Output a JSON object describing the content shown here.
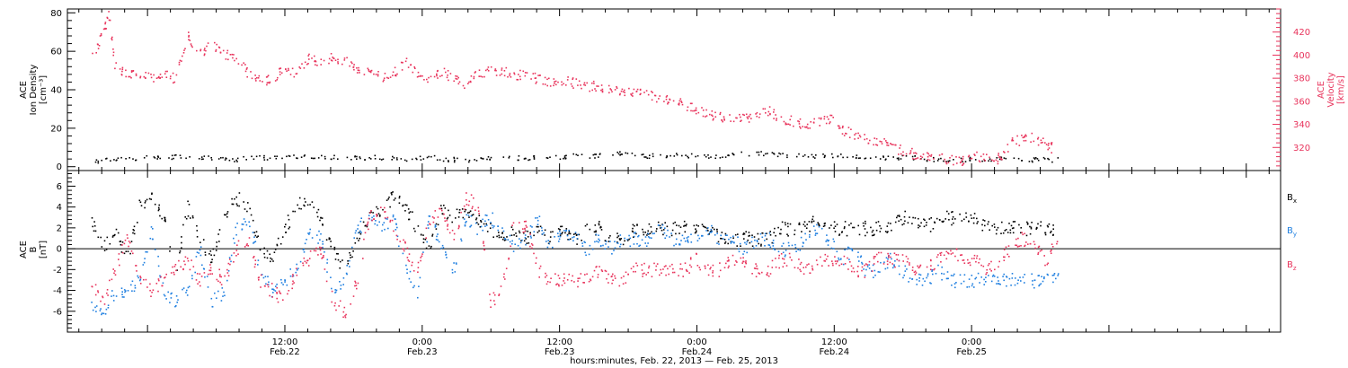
{
  "colors": {
    "black": "#000000",
    "blue": "#1f7fe0",
    "red": "#e8345c"
  },
  "chart_data": [
    {
      "type": "scatter",
      "panel": "top",
      "ylabel_lines": [
        "ACE",
        "Ion Density",
        "[cm⁻³]"
      ],
      "ylim": [
        -2,
        82
      ],
      "yticks": [
        0,
        20,
        40,
        60,
        80
      ],
      "y2label_lines": [
        "ACE",
        "Velocity",
        "[km/s]"
      ],
      "y2lim": [
        300,
        440
      ],
      "y2ticks": [
        320,
        340,
        360,
        380,
        400,
        420
      ],
      "grid": false,
      "series": [
        {
          "axis": "left",
          "color": "#000000",
          "x": [
            0,
            2,
            4,
            6,
            8,
            10,
            12,
            14,
            16,
            18,
            20,
            22,
            24,
            26,
            28,
            30,
            32,
            34,
            36,
            38,
            40,
            42,
            44,
            46,
            48,
            50,
            52,
            54,
            56,
            58,
            60,
            62,
            64,
            66,
            68,
            70,
            72,
            74,
            76,
            78,
            80
          ],
          "y": [
            3,
            4,
            5,
            5,
            6,
            5,
            4,
            5,
            5,
            6,
            5,
            5,
            5,
            4,
            5,
            4,
            4,
            5,
            5,
            5,
            6,
            6,
            7,
            6,
            6,
            6,
            6,
            7,
            7,
            6,
            6,
            6,
            5,
            5,
            5,
            4,
            4,
            4,
            4,
            4,
            4
          ]
        },
        {
          "axis": "right",
          "color": "#e8345c",
          "x": [
            0,
            1,
            1.5,
            2,
            3,
            4,
            5,
            6,
            7,
            8,
            9,
            10,
            11,
            12,
            13,
            14,
            15,
            16,
            17,
            18,
            19,
            20,
            21,
            22,
            23,
            24,
            25,
            26,
            27,
            28,
            29,
            30,
            31,
            32,
            33,
            34,
            35,
            36,
            37,
            38,
            39,
            40,
            41,
            42,
            43,
            44,
            45,
            46,
            47,
            48,
            49,
            50,
            51,
            52,
            53,
            54,
            55,
            56,
            57,
            58,
            59,
            60,
            61,
            62,
            63,
            64,
            65,
            66,
            67,
            68,
            69,
            70,
            71,
            72,
            73,
            74,
            75,
            76,
            77,
            78,
            79,
            79.5
          ],
          "y": [
            395,
            420,
            435,
            390,
            383,
            385,
            380,
            384,
            380,
            418,
            402,
            410,
            402,
            398,
            385,
            380,
            378,
            390,
            385,
            398,
            394,
            398,
            396,
            388,
            388,
            380,
            385,
            395,
            385,
            380,
            386,
            380,
            375,
            385,
            387,
            386,
            384,
            382,
            380,
            378,
            378,
            376,
            374,
            373,
            371,
            370,
            368,
            366,
            364,
            361,
            357,
            353,
            350,
            347,
            345,
            345,
            349,
            352,
            346,
            343,
            341,
            342,
            346,
            336,
            332,
            328,
            327,
            322,
            318,
            315,
            314,
            313,
            310,
            309,
            313,
            311,
            311,
            324,
            328,
            329,
            322,
            320
          ]
        }
      ]
    },
    {
      "type": "scatter",
      "panel": "bottom",
      "ylabel_lines": [
        "ACE",
        "B",
        "[nT]"
      ],
      "ylim": [
        -8,
        7.5
      ],
      "yticks": [
        -6,
        -4,
        -2,
        0,
        2,
        4,
        6
      ],
      "zero_line": true,
      "legend_placement": "right",
      "series": [
        {
          "name": "Bx",
          "name_base": "B",
          "name_sub": "x",
          "color": "#000000",
          "x": [
            0,
            1,
            2,
            3,
            4,
            5,
            6,
            7,
            8,
            9,
            10,
            11,
            12,
            13,
            14,
            15,
            16,
            17,
            18,
            19,
            20,
            21,
            22,
            23,
            24,
            25,
            26,
            27,
            28,
            29,
            30,
            31,
            32,
            33,
            34,
            35,
            36,
            37,
            38,
            39,
            40,
            41,
            42,
            43,
            44,
            45,
            46,
            47,
            48,
            49,
            50,
            51,
            52,
            53,
            54,
            55,
            56,
            57,
            58,
            59,
            60,
            61,
            62,
            63,
            64,
            65,
            66,
            67,
            68,
            69,
            70,
            71,
            72,
            73,
            74,
            75,
            76,
            77,
            78,
            79,
            80
          ],
          "y": [
            3,
            0,
            2,
            -1,
            4,
            5,
            3,
            -2,
            4,
            1,
            -1,
            3,
            5,
            4,
            0,
            -1,
            2,
            4,
            5,
            3,
            0,
            -2,
            1,
            3,
            4,
            5,
            4,
            2,
            0,
            4,
            3,
            4,
            3,
            2,
            1,
            2,
            1,
            2,
            1,
            2,
            1,
            2,
            2,
            1,
            1,
            2,
            2,
            2,
            2,
            2,
            2,
            2,
            1,
            1,
            1,
            1,
            1,
            2,
            2,
            2,
            3,
            2,
            2,
            2,
            2,
            2,
            2,
            3,
            3,
            2,
            3,
            3,
            3,
            3,
            2,
            2,
            2,
            2,
            2,
            2,
            2
          ]
        },
        {
          "name": "By",
          "name_base": "B",
          "name_sub": "y",
          "color": "#1f7fe0",
          "x": [
            0,
            1,
            2,
            3,
            4,
            5,
            6,
            7,
            8,
            9,
            10,
            11,
            12,
            13,
            14,
            15,
            16,
            17,
            18,
            19,
            20,
            21,
            22,
            23,
            24,
            25,
            26,
            27,
            28,
            29,
            30,
            31,
            32,
            33,
            34,
            35,
            36,
            37,
            38,
            39,
            40,
            41,
            42,
            43,
            44,
            45,
            46,
            47,
            48,
            49,
            50,
            51,
            52,
            53,
            54,
            55,
            56,
            57,
            58,
            59,
            60,
            61,
            62,
            63,
            64,
            65,
            66,
            67,
            68,
            69,
            70,
            71,
            72,
            73,
            74,
            75,
            76,
            77,
            78,
            79,
            80
          ],
          "y": [
            -5,
            -6,
            -4,
            -4,
            -3,
            2,
            -4,
            -5,
            -4,
            0,
            -5,
            -4,
            2,
            3,
            -2,
            -4,
            -3,
            -2,
            2,
            1,
            -4,
            -3,
            2,
            3,
            2,
            3,
            -2,
            -4,
            3,
            0,
            -2,
            3,
            2,
            3,
            2,
            0,
            1,
            3,
            0,
            2,
            1,
            0,
            1,
            0,
            1,
            1,
            1,
            2,
            1,
            1,
            1,
            2,
            1,
            1,
            0,
            1,
            1,
            0,
            0,
            1,
            2,
            1,
            -1,
            0,
            -2,
            -2,
            -1,
            -2,
            -3,
            -3,
            -2,
            -3,
            -3,
            -3,
            -3,
            -3,
            -3,
            -3,
            -3,
            -3,
            -3
          ]
        },
        {
          "name": "Bz",
          "name_base": "B",
          "name_sub": "z",
          "color": "#e8345c",
          "x": [
            0,
            1,
            2,
            3,
            4,
            5,
            6,
            7,
            8,
            9,
            10,
            11,
            12,
            13,
            14,
            15,
            16,
            17,
            18,
            19,
            20,
            21,
            22,
            23,
            24,
            25,
            26,
            27,
            28,
            29,
            30,
            31,
            32,
            33,
            34,
            35,
            36,
            37,
            38,
            39,
            40,
            41,
            42,
            43,
            44,
            45,
            46,
            47,
            48,
            49,
            50,
            51,
            52,
            53,
            54,
            55,
            56,
            57,
            58,
            59,
            60,
            61,
            62,
            63,
            64,
            65,
            66,
            67,
            68,
            69,
            70,
            71,
            72,
            73,
            74,
            75,
            76,
            77,
            78,
            79,
            80
          ],
          "y": [
            -3,
            -5,
            -2,
            1,
            -3,
            -4,
            -3,
            -2,
            -1,
            -3,
            -2,
            -3,
            0,
            1,
            -3,
            -4,
            -5,
            -2,
            -1,
            0,
            -5,
            -6,
            -3,
            3,
            4,
            2,
            0,
            -2,
            3,
            4,
            1,
            5,
            4,
            -5,
            -4,
            3,
            2,
            -2,
            -3,
            -3,
            -3,
            -3,
            -2,
            -3,
            -3,
            -2,
            -2,
            -2,
            -2,
            -2,
            -1,
            -2,
            -2,
            -1,
            -1,
            -2,
            -2,
            -1,
            -1,
            -2,
            -1,
            -1,
            -1,
            -2,
            -2,
            -1,
            -1,
            -1,
            -2,
            -2,
            -1,
            0,
            -1,
            -1,
            -2,
            -1,
            0,
            1,
            0,
            -1,
            1
          ]
        }
      ]
    }
  ],
  "x_axis": {
    "range_hours": [
      -19,
      87
    ],
    "ticks": [
      {
        "hour": 0,
        "line1": "12:00",
        "line2": "Feb.22"
      },
      {
        "hour": 12,
        "line1": "0:00",
        "line2": "Feb.23"
      },
      {
        "hour": 24,
        "line1": "12:00",
        "line2": "Feb.23"
      },
      {
        "hour": 36,
        "line1": "0:00",
        "line2": "Feb.24"
      },
      {
        "hour": 48,
        "line1": "12:00",
        "line2": "Feb.24"
      },
      {
        "hour": 60,
        "line1": "0:00",
        "line2": "Feb.25"
      }
    ],
    "title": "hours:minutes, Feb. 22, 2013 — Feb. 25, 2013"
  }
}
